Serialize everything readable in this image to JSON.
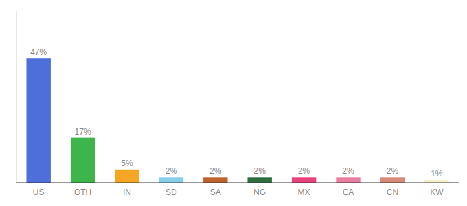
{
  "chart_data": {
    "type": "bar",
    "categories": [
      "US",
      "OTH",
      "IN",
      "SD",
      "SA",
      "NG",
      "MX",
      "CA",
      "CN",
      "KW"
    ],
    "values": [
      47,
      17,
      5,
      2,
      2,
      2,
      2,
      2,
      2,
      1
    ],
    "value_labels": [
      "47%",
      "17%",
      "5%",
      "2%",
      "2%",
      "2%",
      "2%",
      "2%",
      "2%",
      "1%"
    ],
    "colors": [
      "#4e6fd9",
      "#3db54a",
      "#f5a623",
      "#87ceeb",
      "#c0622b",
      "#2d6e3e",
      "#e8437a",
      "#e87fa0",
      "#d9897a",
      "#f5f0c8"
    ],
    "ylim": [
      0,
      65
    ],
    "data_labels": true,
    "tick_labels": "x",
    "grid": false
  }
}
